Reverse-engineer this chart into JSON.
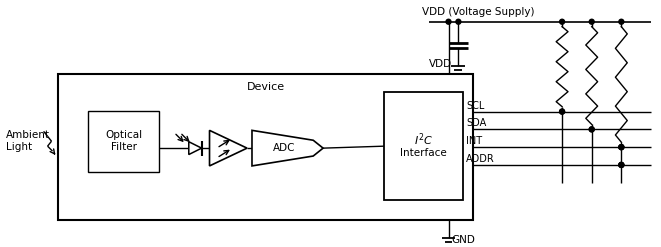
{
  "bg_color": "#ffffff",
  "lc": "#000000",
  "fig_width": 6.61,
  "fig_height": 2.47,
  "dpi": 100,
  "vdd_label": "VDD (Voltage Supply)",
  "vdd_text": "VDD",
  "gnd_text": "GND",
  "device_text": "Device",
  "optical_text": "Optical\nFilter",
  "ambient_text": "Ambient\nLight",
  "adc_text": "ADC",
  "interface_text": "Interface",
  "signals": [
    "SCL",
    "SDA",
    "INT",
    "ADDR"
  ]
}
